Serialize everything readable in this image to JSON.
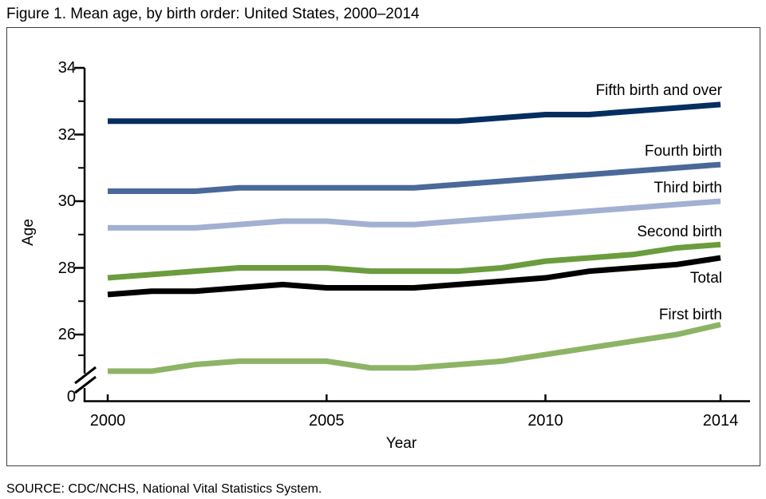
{
  "title": "Figure 1. Mean age, by birth order: United States, 2000–2014",
  "source": "SOURCE: CDC/NCHS, National Vital Statistics System.",
  "chart_data": {
    "type": "line",
    "title": "Figure 1. Mean age, by birth order: United States, 2000–2014",
    "xlabel": "Year",
    "ylabel": "Age",
    "grid": false,
    "legend_position": "inline-right-annotations",
    "x": [
      2000,
      2001,
      2002,
      2003,
      2004,
      2005,
      2006,
      2007,
      2008,
      2009,
      2010,
      2011,
      2012,
      2013,
      2014
    ],
    "x_ticks": [
      2000,
      2005,
      2010,
      2014
    ],
    "y_major_ticks": [
      34,
      32,
      30,
      28,
      26
    ],
    "y_minor_ticks": [
      33,
      31,
      29,
      27,
      25
    ],
    "y_zero_label": "0",
    "y_axis_break": true,
    "ylim": [
      24.5,
      34
    ],
    "series": [
      {
        "name": "Fifth birth and over",
        "color": "#052e60",
        "values": [
          32.4,
          32.4,
          32.4,
          32.4,
          32.4,
          32.4,
          32.4,
          32.4,
          32.4,
          32.5,
          32.6,
          32.6,
          32.7,
          32.8,
          32.9
        ]
      },
      {
        "name": "Fourth birth",
        "color": "#4a6899",
        "values": [
          30.3,
          30.3,
          30.3,
          30.4,
          30.4,
          30.4,
          30.4,
          30.4,
          30.5,
          30.6,
          30.7,
          30.8,
          30.9,
          31.0,
          31.1
        ]
      },
      {
        "name": "Third birth",
        "color": "#a2b0d1",
        "values": [
          29.2,
          29.2,
          29.2,
          29.3,
          29.4,
          29.4,
          29.3,
          29.3,
          29.4,
          29.5,
          29.6,
          29.7,
          29.8,
          29.9,
          30.0
        ]
      },
      {
        "name": "Second birth",
        "color": "#6b9c3d",
        "values": [
          27.7,
          27.8,
          27.9,
          28.0,
          28.0,
          28.0,
          27.9,
          27.9,
          27.9,
          28.0,
          28.2,
          28.3,
          28.4,
          28.6,
          28.7
        ]
      },
      {
        "name": "Total",
        "color": "#000000",
        "values": [
          27.2,
          27.3,
          27.3,
          27.4,
          27.5,
          27.4,
          27.4,
          27.4,
          27.5,
          27.6,
          27.7,
          27.9,
          28.0,
          28.1,
          28.3
        ]
      },
      {
        "name": "First birth",
        "color": "#8db466",
        "values": [
          24.9,
          24.9,
          25.1,
          25.2,
          25.2,
          25.2,
          25.0,
          25.0,
          25.1,
          25.2,
          25.4,
          25.6,
          25.8,
          26.0,
          26.3
        ]
      }
    ]
  }
}
